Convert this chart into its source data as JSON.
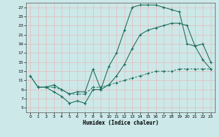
{
  "bg_color": "#cce8e8",
  "grid_color": "#e8b8b8",
  "line_color": "#1a6b5a",
  "xlabel": "Humidex (Indice chaleur)",
  "xlim": [
    -0.5,
    23.5
  ],
  "ylim": [
    4,
    28
  ],
  "xticks": [
    0,
    1,
    2,
    3,
    4,
    5,
    6,
    7,
    8,
    9,
    10,
    11,
    12,
    13,
    14,
    15,
    16,
    17,
    18,
    19,
    20,
    21,
    22,
    23
  ],
  "yticks": [
    5,
    7,
    9,
    11,
    13,
    15,
    17,
    19,
    21,
    23,
    25,
    27
  ],
  "line1_x": [
    0,
    1,
    2,
    3,
    4,
    5,
    6,
    7,
    8,
    9,
    10,
    11,
    12,
    13,
    14,
    15,
    16,
    17,
    18,
    19,
    20,
    21,
    22,
    23
  ],
  "line1_y": [
    12,
    9.5,
    9.5,
    8.5,
    7.5,
    6,
    6.5,
    6,
    9,
    9,
    14,
    17,
    22,
    27,
    27.5,
    27.5,
    27.5,
    27,
    26.5,
    26,
    19,
    18.5,
    15.5,
    13.5
  ],
  "line2_x": [
    0,
    1,
    2,
    3,
    4,
    5,
    6,
    7,
    8,
    9,
    10,
    11,
    12,
    13,
    14,
    15,
    16,
    17,
    18,
    19,
    20,
    21,
    22,
    23
  ],
  "line2_y": [
    12,
    9.5,
    9.5,
    9.5,
    9,
    8,
    8,
    8,
    9.5,
    9.5,
    10,
    10.5,
    11,
    11.5,
    12,
    12.5,
    13,
    13,
    13,
    13.5,
    13.5,
    13.5,
    13.5,
    13.5
  ],
  "line3_x": [
    1,
    2,
    3,
    4,
    5,
    6,
    7,
    8,
    9,
    10,
    11,
    12,
    13,
    14,
    15,
    16,
    17,
    18,
    19,
    20,
    21,
    22,
    23
  ],
  "line3_y": [
    9.5,
    9.5,
    10,
    9,
    8,
    8.5,
    8.5,
    13.5,
    9,
    10,
    12,
    14.5,
    18,
    21,
    22,
    22.5,
    23,
    23.5,
    23.5,
    23,
    18.5,
    19,
    15
  ]
}
